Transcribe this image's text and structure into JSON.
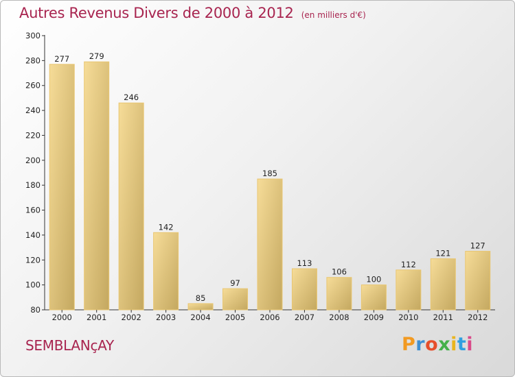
{
  "header": {
    "title": "Autres Revenus Divers de 2000 à 2012",
    "unit": "(en milliers d'€)"
  },
  "footer": {
    "town": "SEMBLANçAY",
    "logo": "Proxiti",
    "logo_colors": [
      "#f29a22",
      "#3f8fd2",
      "#e64e2a",
      "#45b04a",
      "#e9b51f",
      "#2f9fe0",
      "#d94b8a"
    ]
  },
  "colors": {
    "title": "#a8244f",
    "bar_light": "#f6dc98",
    "bar_dark": "#c4a860",
    "bar_edge": "#e9c671",
    "axis": "#333333"
  },
  "chart_data": {
    "type": "bar",
    "title": "Autres Revenus Divers de 2000 à 2012",
    "subtitle": "(en milliers d'€)",
    "xlabel": "",
    "ylabel": "",
    "categories": [
      "2000",
      "2001",
      "2002",
      "2003",
      "2004",
      "2005",
      "2006",
      "2007",
      "2008",
      "2009",
      "2010",
      "2011",
      "2012"
    ],
    "values": [
      277,
      279,
      246,
      142,
      85,
      97,
      185,
      113,
      106,
      100,
      112,
      121,
      127
    ],
    "ylim": [
      80,
      300
    ],
    "yticks": [
      80,
      100,
      120,
      140,
      160,
      180,
      200,
      220,
      240,
      260,
      280,
      300
    ],
    "grid": false,
    "legend": "none",
    "data_labels": true
  }
}
